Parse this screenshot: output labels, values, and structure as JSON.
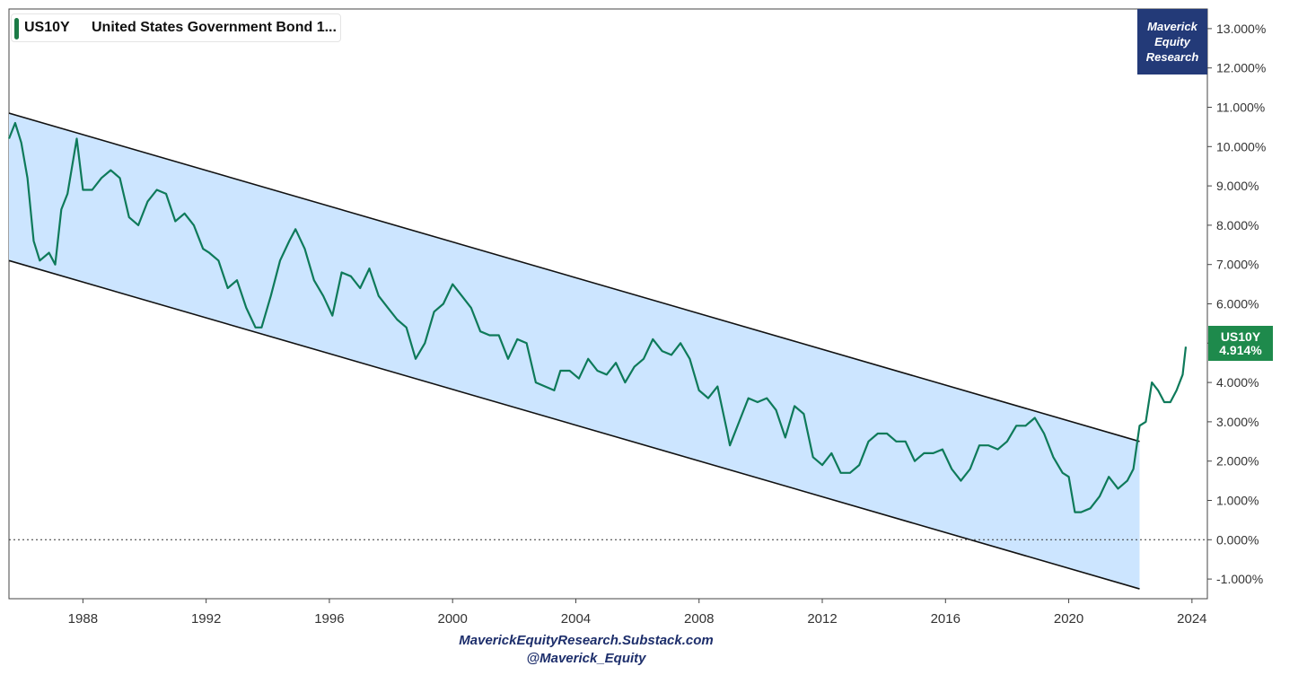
{
  "legend": {
    "symbol": "US10Y",
    "name": "United States Government Bond 1..."
  },
  "brand": {
    "line1": "Maverick",
    "line2": "Equity",
    "line3": "Research"
  },
  "price_tag": {
    "symbol": "US10Y",
    "value": "4.914%",
    "color": "#1e8a4c"
  },
  "credits": {
    "line1": "MaverickEquityResearch.Substack.com",
    "line2": "@Maverick_Equity"
  },
  "chart_data": {
    "type": "line",
    "title": "",
    "xlabel": "",
    "ylabel": "",
    "xlim": [
      1985.6,
      2024.5
    ],
    "ylim": [
      -1.5,
      13.5
    ],
    "x_ticks": [
      "1988",
      "1992",
      "1996",
      "2000",
      "2004",
      "2008",
      "2012",
      "2016",
      "2020",
      "2024"
    ],
    "y_ticks": [
      "13.000%",
      "12.000%",
      "11.000%",
      "10.000%",
      "9.000%",
      "8.000%",
      "7.000%",
      "6.000%",
      "5.000%",
      "4.000%",
      "3.000%",
      "2.000%",
      "1.000%",
      "0.000%",
      "-1.000%"
    ],
    "grid": false,
    "line_color": "#0e7a5a",
    "channel_fill": "#cce5ff",
    "zero_line": "dotted",
    "series": [
      {
        "name": "US10Y",
        "x": [
          1985.6,
          1985.8,
          1986.0,
          1986.2,
          1986.4,
          1986.6,
          1986.9,
          1987.1,
          1987.3,
          1987.5,
          1987.8,
          1988.0,
          1988.3,
          1988.6,
          1988.9,
          1989.2,
          1989.5,
          1989.8,
          1990.1,
          1990.4,
          1990.7,
          1991.0,
          1991.3,
          1991.6,
          1991.9,
          1992.1,
          1992.4,
          1992.7,
          1993.0,
          1993.3,
          1993.6,
          1993.8,
          1994.1,
          1994.4,
          1994.7,
          1994.9,
          1995.2,
          1995.5,
          1995.8,
          1996.1,
          1996.4,
          1996.7,
          1997.0,
          1997.3,
          1997.6,
          1997.9,
          1998.2,
          1998.5,
          1998.8,
          1999.1,
          1999.4,
          1999.7,
          2000.0,
          2000.3,
          2000.6,
          2000.9,
          2001.2,
          2001.5,
          2001.8,
          2002.1,
          2002.4,
          2002.7,
          2003.0,
          2003.3,
          2003.5,
          2003.8,
          2004.1,
          2004.4,
          2004.7,
          2005.0,
          2005.3,
          2005.6,
          2005.9,
          2006.2,
          2006.5,
          2006.8,
          2007.1,
          2007.4,
          2007.7,
          2008.0,
          2008.3,
          2008.6,
          2008.9,
          2009.0,
          2009.3,
          2009.6,
          2009.9,
          2010.2,
          2010.5,
          2010.8,
          2011.1,
          2011.4,
          2011.7,
          2012.0,
          2012.3,
          2012.6,
          2012.9,
          2013.2,
          2013.5,
          2013.8,
          2014.1,
          2014.4,
          2014.7,
          2015.0,
          2015.3,
          2015.6,
          2015.9,
          2016.2,
          2016.5,
          2016.8,
          2017.1,
          2017.4,
          2017.7,
          2018.0,
          2018.3,
          2018.6,
          2018.9,
          2019.2,
          2019.5,
          2019.8,
          2020.0,
          2020.2,
          2020.4,
          2020.7,
          2021.0,
          2021.3,
          2021.6,
          2021.9,
          2022.1,
          2022.3,
          2022.5,
          2022.7,
          2022.9,
          2023.1,
          2023.3,
          2023.5,
          2023.7,
          2023.8
        ],
        "values": [
          10.2,
          10.6,
          10.1,
          9.2,
          7.6,
          7.1,
          7.3,
          7.0,
          8.4,
          8.8,
          10.2,
          8.9,
          8.9,
          9.2,
          9.4,
          9.2,
          8.2,
          8.0,
          8.6,
          8.9,
          8.8,
          8.1,
          8.3,
          8.0,
          7.4,
          7.3,
          7.1,
          6.4,
          6.6,
          5.9,
          5.4,
          5.4,
          6.2,
          7.1,
          7.6,
          7.9,
          7.4,
          6.6,
          6.2,
          5.7,
          6.8,
          6.7,
          6.4,
          6.9,
          6.2,
          5.9,
          5.6,
          5.4,
          4.6,
          5.0,
          5.8,
          6.0,
          6.5,
          6.2,
          5.9,
          5.3,
          5.2,
          5.2,
          4.6,
          5.1,
          5.0,
          4.0,
          3.9,
          3.8,
          4.3,
          4.3,
          4.1,
          4.6,
          4.3,
          4.2,
          4.5,
          4.0,
          4.4,
          4.6,
          5.1,
          4.8,
          4.7,
          5.0,
          4.6,
          3.8,
          3.6,
          3.9,
          2.8,
          2.4,
          3.0,
          3.6,
          3.5,
          3.6,
          3.3,
          2.6,
          3.4,
          3.2,
          2.1,
          1.9,
          2.2,
          1.7,
          1.7,
          1.9,
          2.5,
          2.7,
          2.7,
          2.5,
          2.5,
          2.0,
          2.2,
          2.2,
          2.3,
          1.8,
          1.5,
          1.8,
          2.4,
          2.4,
          2.3,
          2.5,
          2.9,
          2.9,
          3.1,
          2.7,
          2.1,
          1.7,
          1.6,
          0.7,
          0.7,
          0.8,
          1.1,
          1.6,
          1.3,
          1.5,
          1.8,
          2.9,
          3.0,
          4.0,
          3.8,
          3.5,
          3.5,
          3.8,
          4.2,
          4.91
        ]
      }
    ],
    "channel": {
      "upper": {
        "x": [
          1985.6,
          2022.3
        ],
        "values": [
          10.85,
          2.5
        ]
      },
      "lower": {
        "x": [
          1985.6,
          2022.3
        ],
        "values": [
          7.1,
          -1.25
        ]
      }
    },
    "last_value": 4.914
  }
}
